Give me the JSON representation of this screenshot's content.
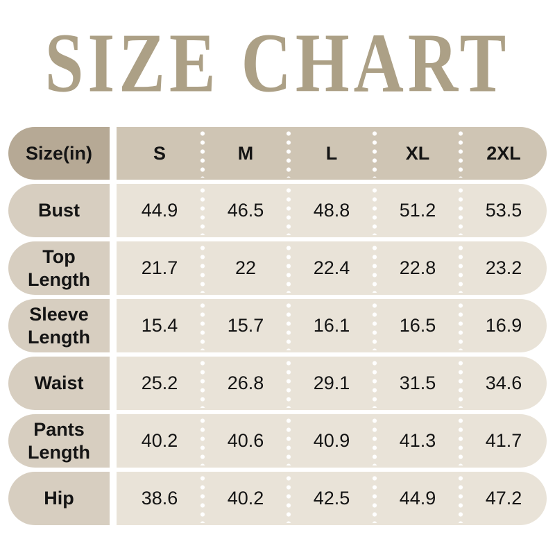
{
  "title": "SIZE CHART",
  "table": {
    "header": {
      "label": "Size(in)",
      "sizes": [
        "S",
        "M",
        "L",
        "XL",
        "2XL"
      ]
    },
    "rows": [
      {
        "label": "Bust",
        "values": [
          "44.9",
          "46.5",
          "48.8",
          "51.2",
          "53.5"
        ]
      },
      {
        "label": "Top Length",
        "values": [
          "21.7",
          "22",
          "22.4",
          "22.8",
          "23.2"
        ]
      },
      {
        "label": "Sleeve Length",
        "values": [
          "15.4",
          "15.7",
          "16.1",
          "16.5",
          "16.9"
        ]
      },
      {
        "label": "Waist",
        "values": [
          "25.2",
          "26.8",
          "29.1",
          "31.5",
          "34.6"
        ]
      },
      {
        "label": "Pants Length",
        "values": [
          "40.2",
          "40.6",
          "40.9",
          "41.3",
          "41.7"
        ]
      },
      {
        "label": "Hip",
        "values": [
          "38.6",
          "40.2",
          "42.5",
          "44.9",
          "47.2"
        ]
      }
    ]
  },
  "colors": {
    "page_bg": "#ffffff",
    "title_text": "#aca086",
    "header_label_bg": "#b6a995",
    "header_values_bg": "#cfc5b4",
    "row_label_bg": "#d7cec0",
    "row_values_bg": "#e9e3d8",
    "table_text": "#141414",
    "divider_dots": "#ffffff"
  },
  "chart_data": {
    "type": "table",
    "title": "SIZE CHART",
    "unit": "in",
    "columns": [
      "Size(in)",
      "S",
      "M",
      "L",
      "XL",
      "2XL"
    ],
    "rows": [
      [
        "Bust",
        44.9,
        46.5,
        48.8,
        51.2,
        53.5
      ],
      [
        "Top Length",
        21.7,
        22,
        22.4,
        22.8,
        23.2
      ],
      [
        "Sleeve Length",
        15.4,
        15.7,
        16.1,
        16.5,
        16.9
      ],
      [
        "Waist",
        25.2,
        26.8,
        29.1,
        31.5,
        34.6
      ],
      [
        "Pants Length",
        40.2,
        40.6,
        40.9,
        41.3,
        41.7
      ],
      [
        "Hip",
        38.6,
        40.2,
        42.5,
        44.9,
        47.2
      ]
    ]
  }
}
